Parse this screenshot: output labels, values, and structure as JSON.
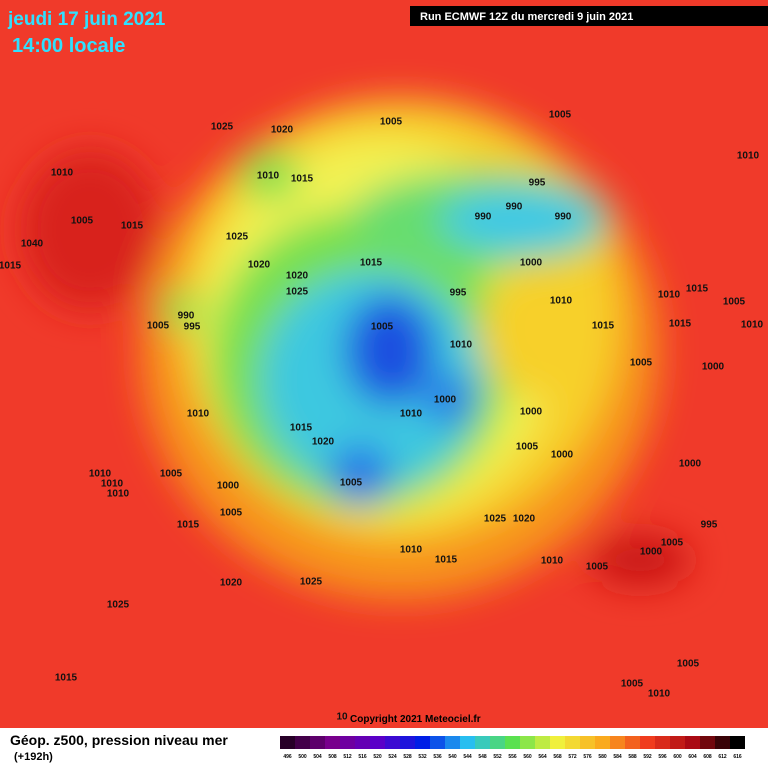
{
  "header": {
    "date": "jeudi 17 juin 2021",
    "time": "14:00 locale",
    "run": "Run ECMWF 12Z du mercredi 9 juin 2021"
  },
  "copyright": "Copyright 2021 Meteociel.fr",
  "caption": {
    "title": "Géop. z500, pression niveau mer",
    "step": "(+192h)"
  },
  "legend": {
    "labels": [
      "496",
      "500",
      "504",
      "508",
      "512",
      "516",
      "520",
      "524",
      "528",
      "532",
      "536",
      "540",
      "544",
      "548",
      "552",
      "556",
      "560",
      "564",
      "568",
      "572",
      "576",
      "580",
      "584",
      "588",
      "592",
      "596",
      "600",
      "604",
      "608",
      "612",
      "616"
    ]
  },
  "isobar_labels": [
    "1025",
    "1020",
    "1005",
    "1005",
    "1010",
    "1010",
    "1010",
    "1015",
    "995",
    "990",
    "990",
    "990",
    "1005",
    "1015",
    "1025",
    "1040",
    "1015",
    "1020",
    "1015",
    "1000",
    "1020",
    "1025",
    "995",
    "1010",
    "1015",
    "1010",
    "1005",
    "990",
    "995",
    "1005",
    "1005",
    "1010",
    "1015",
    "1015",
    "1010",
    "1005",
    "1000",
    "1000",
    "1010",
    "1010",
    "1000",
    "1015",
    "1020",
    "1005",
    "1000",
    "1000",
    "1010",
    "1005",
    "1010",
    "1010",
    "1000",
    "1005",
    "1005",
    "1025",
    "1020",
    "1015",
    "995",
    "1005",
    "1000",
    "1010",
    "1015",
    "1010",
    "1005",
    "1020",
    "1025",
    "1025",
    "1015",
    "1005",
    "1005",
    "1010",
    "10"
  ]
}
